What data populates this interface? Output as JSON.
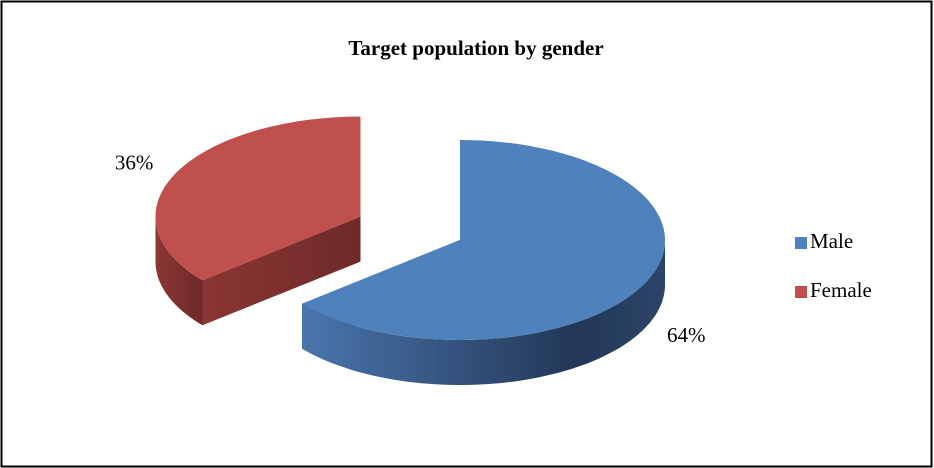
{
  "chart_data": {
    "type": "pie",
    "title": "Target population by gender",
    "categories": [
      "Male",
      "Female"
    ],
    "values": [
      64,
      36
    ],
    "value_labels": [
      "64%",
      "36%"
    ],
    "colors": [
      "#4f81bd",
      "#c0504d"
    ],
    "legend": "right"
  }
}
